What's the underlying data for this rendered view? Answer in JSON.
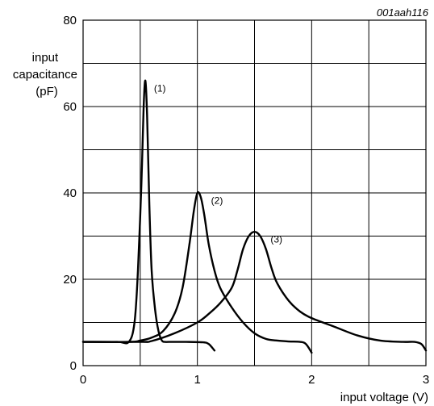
{
  "chart_data": {
    "type": "line",
    "code": "001aah116",
    "xlabel": "input voltage (V)",
    "ylabel": "input\ncapacitance\n(pF)",
    "xlim": [
      0,
      3
    ],
    "ylim": [
      0,
      80
    ],
    "x_ticks": [
      "0",
      "1",
      "2",
      "3"
    ],
    "y_ticks": [
      "0",
      "20",
      "40",
      "60",
      "80"
    ],
    "grid": true,
    "series": [
      {
        "name": "(1)",
        "x": [
          0.0,
          0.3,
          0.4,
          0.45,
          0.48,
          0.51,
          0.53,
          0.545,
          0.56,
          0.58,
          0.6,
          0.63,
          0.66,
          0.69,
          0.72,
          0.75,
          0.9,
          1.05,
          1.1,
          1.15
        ],
        "y": [
          5.5,
          5.5,
          5.5,
          10.0,
          22.0,
          42.0,
          60.0,
          66.0,
          58.0,
          37.0,
          22.0,
          13.0,
          8.0,
          5.8,
          5.5,
          5.5,
          5.5,
          5.4,
          5.0,
          3.5
        ]
      },
      {
        "name": "(2)",
        "x": [
          0.0,
          0.4,
          0.5,
          0.6,
          0.7,
          0.8,
          0.87,
          0.93,
          0.97,
          1.0,
          1.03,
          1.06,
          1.1,
          1.15,
          1.2,
          1.3,
          1.4,
          1.5,
          1.6,
          1.7,
          1.8,
          1.9,
          1.95,
          2.0
        ],
        "y": [
          5.5,
          5.5,
          5.8,
          6.5,
          8.0,
          12.0,
          18.0,
          28.0,
          36.0,
          40.0,
          39.0,
          35.0,
          28.0,
          22.0,
          18.0,
          13.5,
          10.0,
          7.5,
          6.2,
          5.8,
          5.6,
          5.5,
          5.0,
          3.0
        ]
      },
      {
        "name": "(3)",
        "x": [
          0.0,
          0.5,
          0.6,
          0.8,
          1.0,
          1.1,
          1.2,
          1.3,
          1.35,
          1.4,
          1.45,
          1.5,
          1.55,
          1.6,
          1.65,
          1.7,
          1.8,
          1.9,
          2.0,
          2.2,
          2.4,
          2.6,
          2.8,
          2.9,
          2.96,
          3.0
        ],
        "y": [
          5.5,
          5.5,
          5.7,
          7.5,
          10.0,
          12.0,
          14.5,
          18.0,
          22.0,
          27.0,
          30.0,
          31.0,
          30.0,
          27.0,
          22.5,
          19.0,
          15.0,
          12.5,
          11.0,
          9.0,
          7.0,
          5.8,
          5.5,
          5.5,
          5.0,
          3.5
        ]
      }
    ],
    "annotations": [
      {
        "text": "(1)",
        "x": 0.62,
        "y": 63.5
      },
      {
        "text": "(2)",
        "x": 1.12,
        "y": 37.5
      },
      {
        "text": "(3)",
        "x": 1.64,
        "y": 28.5
      }
    ]
  }
}
